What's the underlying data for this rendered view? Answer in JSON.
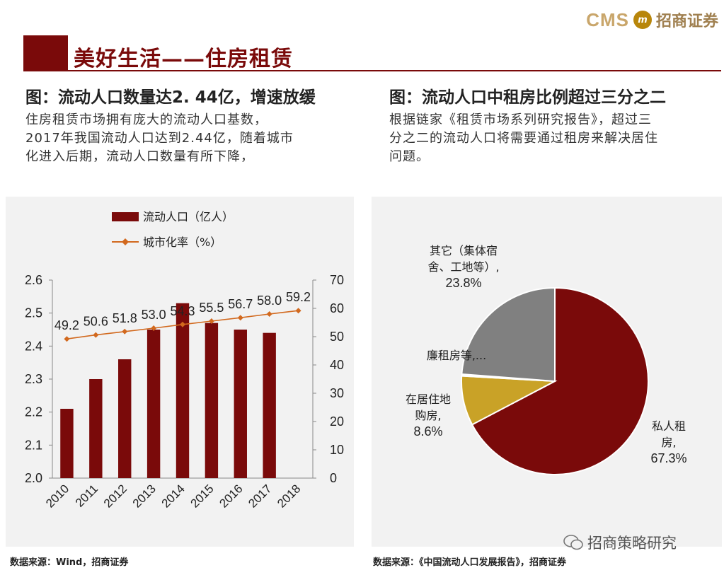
{
  "brand": {
    "cms": "CMS",
    "seal": "m",
    "name": "招商证券"
  },
  "page_title": "美好生活——住房租赁",
  "left": {
    "subtitle": "图：流动人口数量达2. 44亿，增速放缓",
    "desc": [
      "住房租赁市场拥有庞大的流动人口基数，",
      "2017年我国流动人口达到2.44亿，随着城市",
      "化进入后期，流动人口数量有所下降，"
    ],
    "source": "数据来源：Wind，招商证券"
  },
  "right": {
    "subtitle": "图：流动人口中租房比例超过三分之二",
    "desc": [
      "根据链家《租赁市场系列研究报告》，超过三",
      "分之二的流动人口将需要通过租房来解决居住",
      "问题。"
    ],
    "source": "数据来源：《中国流动人口发展报告》，招商证券"
  },
  "watermark": "招商策略研究",
  "colors": {
    "maroon": "#7a0a0a",
    "line": "#d2691e",
    "gold": "#c9a227",
    "gray": "#808080",
    "panel": "#f2f2f2"
  },
  "chart_data": [
    {
      "type": "bar+line",
      "categories": [
        "2010",
        "2011",
        "2012",
        "2013",
        "2014",
        "2015",
        "2016",
        "2017",
        "2018"
      ],
      "series": [
        {
          "name": "流动人口（亿人）",
          "type": "bar",
          "axis": "left",
          "values": [
            2.21,
            2.3,
            2.36,
            2.45,
            2.53,
            2.47,
            2.45,
            2.44,
            null
          ]
        },
        {
          "name": "城市化率（%）",
          "type": "line",
          "axis": "right",
          "values": [
            49.2,
            50.6,
            51.8,
            53.0,
            54.3,
            55.5,
            56.7,
            58.0,
            59.2
          ],
          "labels": [
            "49.2",
            "50.6",
            "51.8",
            "53.0",
            "54.3",
            "55.5",
            "56.7",
            "58.0",
            "59.2"
          ]
        }
      ],
      "ylim_left": [
        2.0,
        2.6
      ],
      "yticks_left": [
        "2.0",
        "2.1",
        "2.2",
        "2.3",
        "2.4",
        "2.5",
        "2.6"
      ],
      "ylim_right": [
        0,
        70
      ],
      "yticks_right": [
        "0",
        "10",
        "20",
        "30",
        "40",
        "50",
        "60",
        "70"
      ],
      "legend_placement": "top-left"
    },
    {
      "type": "pie",
      "slices": [
        {
          "name": "私人租房",
          "value": 67.3,
          "label": [
            "私人租",
            "房,",
            "67.3%"
          ]
        },
        {
          "name": "在居住地购房",
          "value": 8.6,
          "label": [
            "在居住地",
            "购房,",
            "8.6%"
          ]
        },
        {
          "name": "廉租房等",
          "value": 0.3,
          "label": [
            "廉租房等,..."
          ]
        },
        {
          "name": "其它（集体宿舍、工地等）",
          "value": 23.8,
          "label": [
            "其它（集体宿",
            "舍、工地等）,",
            "23.8%"
          ]
        }
      ]
    }
  ]
}
